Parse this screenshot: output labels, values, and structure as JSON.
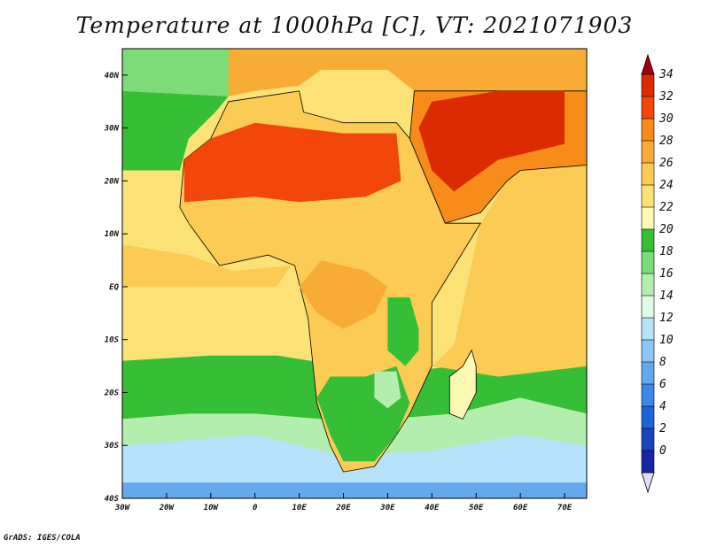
{
  "title": "Temperature at 1000hPa [C], VT: 2021071903",
  "credit": "GrADS: IGES/COLA",
  "map": {
    "variable": "Temperature",
    "level": "1000hPa",
    "units": "C",
    "valid_time": "2021071903",
    "lon_range": [
      -30,
      75
    ],
    "lat_range": [
      -40,
      45
    ],
    "x_ticks": [
      {
        "value": -30,
        "label": "30W"
      },
      {
        "value": -20,
        "label": "20W"
      },
      {
        "value": -10,
        "label": "10W"
      },
      {
        "value": 0,
        "label": "0"
      },
      {
        "value": 10,
        "label": "10E"
      },
      {
        "value": 20,
        "label": "20E"
      },
      {
        "value": 30,
        "label": "30E"
      },
      {
        "value": 40,
        "label": "40E"
      },
      {
        "value": 50,
        "label": "50E"
      },
      {
        "value": 60,
        "label": "60E"
      },
      {
        "value": 70,
        "label": "70E"
      }
    ],
    "y_ticks": [
      {
        "value": 40,
        "label": "40N"
      },
      {
        "value": 30,
        "label": "30N"
      },
      {
        "value": 20,
        "label": "20N"
      },
      {
        "value": 10,
        "label": "10N"
      },
      {
        "value": 0,
        "label": "EQ"
      },
      {
        "value": -10,
        "label": "10S"
      },
      {
        "value": -20,
        "label": "20S"
      },
      {
        "value": -30,
        "label": "30S"
      },
      {
        "value": -40,
        "label": "40S"
      }
    ],
    "regions": [
      {
        "name": "ocean-south-cold",
        "temp": 8,
        "ring": [
          [
            -30,
            -40
          ],
          [
            75,
            -40
          ],
          [
            75,
            -30
          ],
          [
            60,
            -28
          ],
          [
            40,
            -33
          ],
          [
            20,
            -33
          ],
          [
            0,
            -28
          ],
          [
            -30,
            -30
          ]
        ]
      },
      {
        "name": "ocean-south-cool",
        "temp": 12,
        "ring": [
          [
            -30,
            -37
          ],
          [
            75,
            -37
          ],
          [
            75,
            -30
          ],
          [
            60,
            -28
          ],
          [
            40,
            -31
          ],
          [
            20,
            -32
          ],
          [
            0,
            -28
          ],
          [
            -30,
            -30
          ]
        ]
      },
      {
        "name": "ocean-south-mid",
        "temp": 15,
        "ring": [
          [
            -30,
            -30
          ],
          [
            0,
            -28
          ],
          [
            20,
            -32
          ],
          [
            40,
            -31
          ],
          [
            60,
            -28
          ],
          [
            75,
            -30
          ],
          [
            75,
            -24
          ],
          [
            60,
            -21
          ],
          [
            45,
            -24
          ],
          [
            30,
            -25
          ],
          [
            15,
            -25
          ],
          [
            0,
            -24
          ],
          [
            -15,
            -24
          ],
          [
            -30,
            -25
          ]
        ]
      },
      {
        "name": "ocean-south-green",
        "temp": 19,
        "ring": [
          [
            -30,
            -25
          ],
          [
            -15,
            -24
          ],
          [
            0,
            -24
          ],
          [
            15,
            -25
          ],
          [
            30,
            -25
          ],
          [
            45,
            -24
          ],
          [
            60,
            -21
          ],
          [
            75,
            -24
          ],
          [
            75,
            -15
          ],
          [
            55,
            -17
          ],
          [
            45,
            -15
          ],
          [
            35,
            -16
          ],
          [
            20,
            -15
          ],
          [
            5,
            -13
          ],
          [
            -10,
            -13
          ],
          [
            -30,
            -14
          ]
        ]
      },
      {
        "name": "atlantic-warm-south",
        "temp": 23,
        "ring": [
          [
            -30,
            -14
          ],
          [
            -10,
            -13
          ],
          [
            5,
            -13
          ],
          [
            10,
            -7
          ],
          [
            5,
            0
          ],
          [
            -10,
            0
          ],
          [
            -30,
            0
          ]
        ]
      },
      {
        "name": "atlantic-equatorial",
        "temp": 25,
        "ring": [
          [
            -30,
            0
          ],
          [
            -10,
            0
          ],
          [
            5,
            0
          ],
          [
            8,
            4
          ],
          [
            -5,
            3
          ],
          [
            -15,
            6
          ],
          [
            -30,
            8
          ]
        ]
      },
      {
        "name": "atlantic-north",
        "temp": 23,
        "ring": [
          [
            -30,
            8
          ],
          [
            -15,
            6
          ],
          [
            -5,
            3
          ],
          [
            8,
            4
          ],
          [
            -17,
            14
          ],
          [
            -17,
            22
          ],
          [
            -15,
            28
          ],
          [
            -9,
            33
          ],
          [
            -6,
            36
          ],
          [
            -30,
            37
          ]
        ]
      },
      {
        "name": "atlantic-north-green",
        "temp": 19,
        "ring": [
          [
            -30,
            37
          ],
          [
            -6,
            36
          ],
          [
            -9,
            33
          ],
          [
            -15,
            28
          ],
          [
            -17,
            22
          ],
          [
            -30,
            22
          ]
        ]
      },
      {
        "name": "atlantic-far-north",
        "temp": 17,
        "ring": [
          [
            -30,
            45
          ],
          [
            -6,
            45
          ],
          [
            -6,
            36
          ],
          [
            -30,
            37
          ]
        ]
      },
      {
        "name": "indian-ocean",
        "temp": 26,
        "ring": [
          [
            40,
            -15
          ],
          [
            45,
            -11
          ],
          [
            51,
            12
          ],
          [
            57,
            20
          ],
          [
            60,
            22
          ],
          [
            75,
            23
          ],
          [
            75,
            -15
          ],
          [
            55,
            -17
          ]
        ]
      },
      {
        "name": "mediterranean",
        "temp": 24,
        "ring": [
          [
            -6,
            36
          ],
          [
            0,
            37
          ],
          [
            10,
            38
          ],
          [
            15,
            41
          ],
          [
            30,
            41
          ],
          [
            36,
            37
          ],
          [
            36,
            31
          ],
          [
            25,
            32
          ],
          [
            10,
            32
          ],
          [
            -6,
            35
          ]
        ]
      },
      {
        "name": "europe",
        "temp": 27,
        "ring": [
          [
            -6,
            36
          ],
          [
            -6,
            45
          ],
          [
            75,
            45
          ],
          [
            75,
            37
          ],
          [
            36,
            37
          ],
          [
            30,
            41
          ],
          [
            15,
            41
          ],
          [
            10,
            38
          ],
          [
            0,
            37
          ]
        ]
      },
      {
        "name": "africa-land",
        "temp": 26,
        "ring": [
          [
            -17,
            15
          ],
          [
            -16,
            24
          ],
          [
            -10,
            28
          ],
          [
            -6,
            35
          ],
          [
            10,
            37
          ],
          [
            11,
            33
          ],
          [
            20,
            31
          ],
          [
            32,
            31
          ],
          [
            35,
            28
          ],
          [
            43,
            12
          ],
          [
            51,
            12
          ],
          [
            40,
            -3
          ],
          [
            40,
            -15
          ],
          [
            35,
            -24
          ],
          [
            32,
            -28
          ],
          [
            27,
            -34
          ],
          [
            20,
            -35
          ],
          [
            17,
            -30
          ],
          [
            14,
            -22
          ],
          [
            12,
            -6
          ],
          [
            9,
            4
          ],
          [
            3,
            6
          ],
          [
            -8,
            4
          ],
          [
            -15,
            12
          ]
        ]
      },
      {
        "name": "sahara-hot",
        "temp": 32,
        "ring": [
          [
            -16,
            24
          ],
          [
            -10,
            28
          ],
          [
            0,
            31
          ],
          [
            20,
            29
          ],
          [
            32,
            29
          ],
          [
            33,
            20
          ],
          [
            25,
            17
          ],
          [
            10,
            16
          ],
          [
            0,
            17
          ],
          [
            -16,
            16
          ]
        ]
      },
      {
        "name": "arabia-land",
        "temp": 30,
        "ring": [
          [
            35,
            28
          ],
          [
            36,
            37
          ],
          [
            60,
            37
          ],
          [
            75,
            37
          ],
          [
            75,
            23
          ],
          [
            60,
            22
          ],
          [
            57,
            20
          ],
          [
            51,
            14
          ],
          [
            43,
            12
          ]
        ]
      },
      {
        "name": "arabia-hot",
        "temp": 33,
        "ring": [
          [
            37,
            30
          ],
          [
            40,
            35
          ],
          [
            55,
            37
          ],
          [
            70,
            37
          ],
          [
            70,
            27
          ],
          [
            55,
            24
          ],
          [
            45,
            18
          ],
          [
            40,
            22
          ]
        ]
      },
      {
        "name": "sahel",
        "temp": 25,
        "ring": [
          [
            -15,
            12
          ],
          [
            -8,
            10
          ],
          [
            10,
            11
          ],
          [
            25,
            12
          ],
          [
            33,
            14
          ],
          [
            38,
            10
          ],
          [
            30,
            8
          ],
          [
            20,
            7
          ],
          [
            5,
            8
          ],
          [
            -10,
            8
          ]
        ]
      },
      {
        "name": "congo-warm",
        "temp": 28,
        "ring": [
          [
            10,
            0
          ],
          [
            15,
            5
          ],
          [
            25,
            3
          ],
          [
            30,
            0
          ],
          [
            27,
            -5
          ],
          [
            20,
            -8
          ],
          [
            14,
            -5
          ]
        ]
      },
      {
        "name": "east-africa-green",
        "temp": 19,
        "ring": [
          [
            30,
            -2
          ],
          [
            35,
            -2
          ],
          [
            37,
            -8
          ],
          [
            37,
            -12
          ],
          [
            34,
            -15
          ],
          [
            30,
            -12
          ]
        ]
      },
      {
        "name": "southern-africa-green",
        "temp": 20,
        "ring": [
          [
            17,
            -17
          ],
          [
            25,
            -17
          ],
          [
            32,
            -15
          ],
          [
            35,
            -22
          ],
          [
            32,
            -28
          ],
          [
            27,
            -33
          ],
          [
            20,
            -33
          ],
          [
            17,
            -28
          ],
          [
            14,
            -21
          ]
        ]
      },
      {
        "name": "southern-africa-cool",
        "temp": 15,
        "ring": [
          [
            27,
            -16
          ],
          [
            32,
            -16
          ],
          [
            33,
            -21
          ],
          [
            30,
            -23
          ],
          [
            27,
            -21
          ]
        ]
      },
      {
        "name": "madagascar",
        "temp": 21,
        "ring": [
          [
            49,
            -12
          ],
          [
            50,
            -15
          ],
          [
            50,
            -20
          ],
          [
            47,
            -25
          ],
          [
            44,
            -24
          ],
          [
            44,
            -17
          ],
          [
            47,
            -15
          ]
        ]
      }
    ]
  },
  "colorbar": {
    "levels": [
      "34",
      "32",
      "30",
      "28",
      "26",
      "24",
      "22",
      "20",
      "18",
      "16",
      "14",
      "12",
      "10",
      "8",
      "6",
      "4",
      "2",
      "0"
    ],
    "colors": [
      "#a0000a",
      "#dc2b00",
      "#f2460b",
      "#f78c1a",
      "#f9ac35",
      "#fbcb54",
      "#fbe277",
      "#fdf8b3",
      "#37be37",
      "#7bdc78",
      "#b4eeae",
      "#e0fbe5",
      "#b6e3fb",
      "#8ec6f5",
      "#64a8ee",
      "#3c87e8",
      "#1e63d7",
      "#1a44c0",
      "#16279f",
      "#e3dcf5"
    ]
  }
}
